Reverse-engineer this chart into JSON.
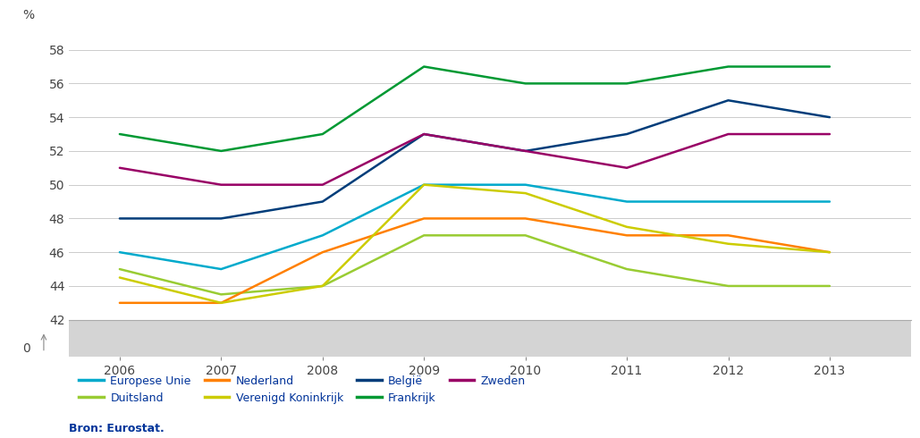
{
  "years": [
    2006,
    2007,
    2008,
    2009,
    2010,
    2011,
    2012,
    2013
  ],
  "series": {
    "Europese Unie": {
      "values": [
        46.0,
        45.0,
        47.0,
        50.0,
        50.0,
        49.0,
        49.0,
        49.0
      ],
      "color": "#00AACC",
      "linewidth": 1.8
    },
    "Duitsland": {
      "values": [
        45.0,
        43.5,
        44.0,
        47.0,
        47.0,
        45.0,
        44.0,
        44.0
      ],
      "color": "#99CC33",
      "linewidth": 1.8
    },
    "Nederland": {
      "values": [
        43.0,
        43.0,
        46.0,
        48.0,
        48.0,
        47.0,
        47.0,
        46.0
      ],
      "color": "#FF8000",
      "linewidth": 1.8
    },
    "Verenigd Koninkrijk": {
      "values": [
        44.5,
        43.0,
        44.0,
        50.0,
        49.5,
        47.5,
        46.5,
        46.0
      ],
      "color": "#CCCC00",
      "linewidth": 1.8
    },
    "België": {
      "values": [
        48.0,
        48.0,
        49.0,
        53.0,
        52.0,
        53.0,
        55.0,
        54.0
      ],
      "color": "#003D7A",
      "linewidth": 1.8
    },
    "Frankrijk": {
      "values": [
        53.0,
        52.0,
        53.0,
        57.0,
        56.0,
        56.0,
        57.0,
        57.0
      ],
      "color": "#009933",
      "linewidth": 1.8
    },
    "Zweden": {
      "values": [
        51.0,
        50.0,
        50.0,
        53.0,
        52.0,
        51.0,
        53.0,
        53.0
      ],
      "color": "#990066",
      "linewidth": 1.8
    }
  },
  "ylabel": "%",
  "ylim": [
    42.0,
    59.0
  ],
  "yticks": [
    42,
    44,
    46,
    48,
    50,
    52,
    54,
    56,
    58
  ],
  "background_color": "#FFFFFF",
  "plot_bg_color": "#FFFFFF",
  "gray_bar_color": "#D4D4D4",
  "grid_color": "#CCCCCC",
  "source_text": "Bron: Eurostat.",
  "legend_order": [
    "Europese Unie",
    "Duitsland",
    "Nederland",
    "Verenigd Koninkrijk",
    "België",
    "Frankrijk",
    "Zweden"
  ]
}
